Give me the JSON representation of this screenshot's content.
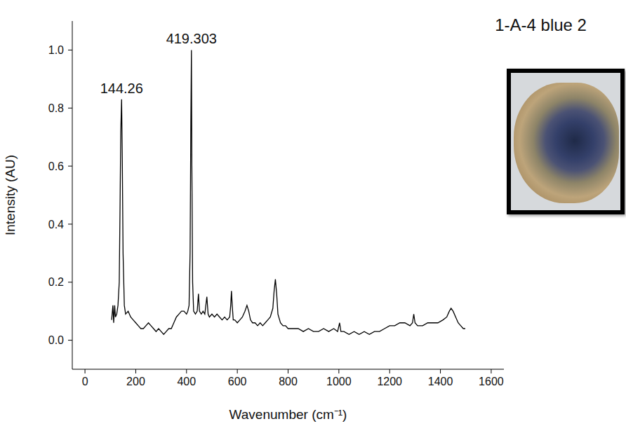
{
  "chart_data": {
    "type": "line",
    "title": "1-A-4 blue 2",
    "x_label": "Wavenumber (cm⁻¹)",
    "y_label": "Intensity (AU)",
    "x": [
      105,
      110,
      113,
      117,
      120,
      125,
      130,
      135,
      138,
      141,
      144.26,
      147,
      150,
      155,
      160,
      170,
      180,
      190,
      200,
      210,
      220,
      230,
      240,
      250,
      260,
      270,
      280,
      290,
      300,
      310,
      320,
      330,
      340,
      350,
      360,
      370,
      380,
      390,
      400,
      405,
      410,
      414,
      417,
      419.303,
      421,
      424,
      428,
      435,
      442,
      447,
      451,
      458,
      465,
      472,
      480,
      485,
      490,
      500,
      510,
      520,
      530,
      540,
      550,
      560,
      570,
      574,
      577,
      580,
      584,
      590,
      600,
      610,
      620,
      630,
      638,
      645,
      652,
      660,
      670,
      680,
      690,
      700,
      710,
      720,
      730,
      740,
      745,
      750,
      755,
      760,
      770,
      780,
      790,
      800,
      820,
      840,
      860,
      880,
      900,
      920,
      940,
      960,
      980,
      995,
      1003,
      1008,
      1020,
      1040,
      1060,
      1080,
      1100,
      1120,
      1140,
      1160,
      1180,
      1200,
      1220,
      1240,
      1260,
      1280,
      1290,
      1295,
      1300,
      1310,
      1330,
      1350,
      1370,
      1390,
      1410,
      1425,
      1435,
      1442,
      1450,
      1460,
      1470,
      1480,
      1490,
      1498
    ],
    "values": [
      0.07,
      0.12,
      0.06,
      0.12,
      0.08,
      0.09,
      0.12,
      0.2,
      0.45,
      0.72,
      0.83,
      0.62,
      0.3,
      0.12,
      0.09,
      0.1,
      0.08,
      0.07,
      0.06,
      0.05,
      0.04,
      0.04,
      0.05,
      0.06,
      0.05,
      0.04,
      0.03,
      0.04,
      0.03,
      0.02,
      0.03,
      0.04,
      0.04,
      0.06,
      0.08,
      0.09,
      0.1,
      0.1,
      0.09,
      0.1,
      0.12,
      0.3,
      0.75,
      1.0,
      0.6,
      0.2,
      0.1,
      0.09,
      0.1,
      0.16,
      0.1,
      0.09,
      0.1,
      0.09,
      0.15,
      0.09,
      0.08,
      0.09,
      0.08,
      0.09,
      0.08,
      0.07,
      0.08,
      0.07,
      0.08,
      0.12,
      0.17,
      0.12,
      0.07,
      0.07,
      0.06,
      0.07,
      0.08,
      0.1,
      0.12,
      0.1,
      0.07,
      0.06,
      0.06,
      0.05,
      0.06,
      0.05,
      0.06,
      0.07,
      0.08,
      0.11,
      0.17,
      0.21,
      0.16,
      0.09,
      0.06,
      0.05,
      0.05,
      0.04,
      0.04,
      0.04,
      0.03,
      0.04,
      0.03,
      0.03,
      0.04,
      0.03,
      0.04,
      0.03,
      0.06,
      0.03,
      0.03,
      0.02,
      0.03,
      0.02,
      0.03,
      0.02,
      0.03,
      0.03,
      0.04,
      0.05,
      0.05,
      0.06,
      0.06,
      0.05,
      0.06,
      0.09,
      0.06,
      0.05,
      0.05,
      0.06,
      0.06,
      0.06,
      0.07,
      0.08,
      0.1,
      0.11,
      0.1,
      0.08,
      0.06,
      0.05,
      0.04,
      0.04
    ],
    "color": "#000000",
    "xlim": [
      -50,
      1650
    ],
    "xticks": [
      0,
      200,
      400,
      600,
      800,
      1000,
      1200,
      1400,
      1600
    ],
    "ylim": [
      -0.1,
      1.1
    ],
    "yticks": [
      {
        "value": 0,
        "label": "0.0"
      },
      {
        "value": 0.2,
        "label": "0.2"
      },
      {
        "value": 0.4,
        "label": "0.4"
      },
      {
        "value": 0.6,
        "label": "0.6"
      },
      {
        "value": 0.8,
        "label": "0.8"
      },
      {
        "value": 1.0,
        "label": "1.0"
      }
    ],
    "grid": false,
    "annotations": [
      {
        "text": "144.26",
        "x": 144.26,
        "y": 0.83
      },
      {
        "text": "419.303",
        "x": 419.303,
        "y": 1.0
      }
    ]
  }
}
